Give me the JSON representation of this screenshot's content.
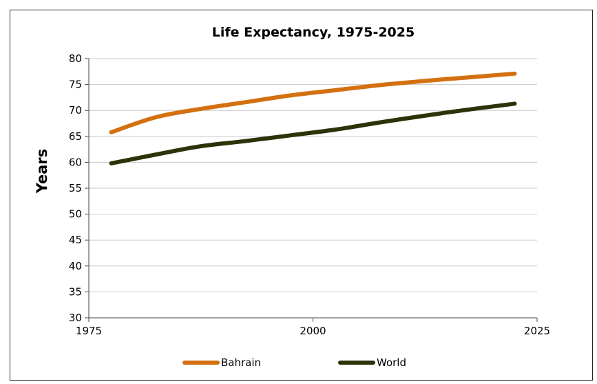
{
  "chart_data": {
    "type": "line",
    "title": "Life Expectancy, 1975-2025",
    "ylabel": "Years",
    "xlabel": "",
    "xlim": [
      1975,
      2025
    ],
    "ylim": [
      30,
      80
    ],
    "x_ticks": [
      1975,
      2000,
      2025
    ],
    "y_ticks": [
      30,
      35,
      40,
      45,
      50,
      55,
      60,
      65,
      70,
      75,
      80
    ],
    "grid": "horizontal",
    "legend": "bottom",
    "x": [
      1977.5,
      1982.5,
      1987.5,
      1992.5,
      1997.5,
      2002.5,
      2007.5,
      2012.5,
      2017.5,
      2022.5
    ],
    "series": [
      {
        "name": "Bahrain",
        "color": "#d4700f",
        "values": [
          65.8,
          68.7,
          70.3,
          71.6,
          72.9,
          73.9,
          74.9,
          75.7,
          76.4,
          77.1
        ]
      },
      {
        "name": "World",
        "color": "#2b3309",
        "values": [
          59.8,
          61.5,
          63.1,
          64.1,
          65.2,
          66.3,
          67.7,
          69.0,
          70.2,
          71.3
        ]
      }
    ]
  }
}
